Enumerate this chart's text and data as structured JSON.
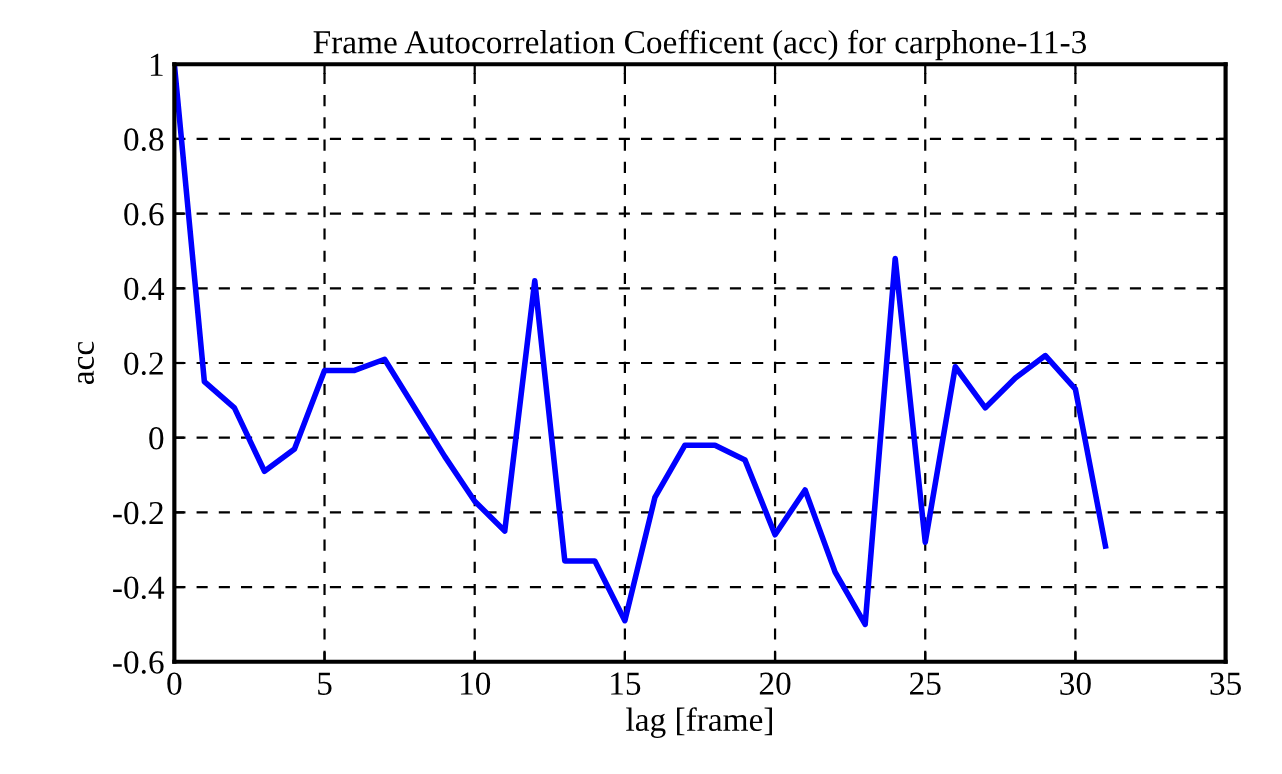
{
  "chart_data": {
    "type": "line",
    "title": "Frame Autocorrelation Coefficent (acc) for carphone-11-3",
    "xlabel": "lag [frame]",
    "ylabel": "acc",
    "x": [
      0,
      1,
      2,
      3,
      4,
      5,
      6,
      7,
      8,
      9,
      10,
      11,
      12,
      13,
      14,
      15,
      16,
      17,
      18,
      19,
      20,
      21,
      22,
      23,
      24,
      25,
      26,
      27,
      28,
      29,
      30,
      31
    ],
    "series": [
      {
        "color": "#0000ff",
        "values": [
          1.0,
          0.15,
          0.08,
          -0.09,
          -0.03,
          0.18,
          0.18,
          0.21,
          0.08,
          -0.05,
          -0.17,
          -0.25,
          0.42,
          -0.33,
          -0.33,
          -0.49,
          -0.16,
          -0.02,
          -0.02,
          -0.06,
          -0.26,
          -0.14,
          -0.36,
          -0.5,
          0.48,
          -0.28,
          0.19,
          0.08,
          0.16,
          0.22,
          0.13,
          -0.29
        ]
      }
    ],
    "xlim": [
      0,
      35
    ],
    "xticks": [
      0,
      5,
      10,
      15,
      20,
      25,
      30,
      35
    ],
    "ylim": [
      -0.6,
      1
    ],
    "yticks": [
      -0.6,
      -0.4,
      -0.2,
      0,
      0.2,
      0.4,
      0.6,
      0.8,
      1
    ],
    "grid": true,
    "legend": false,
    "marker": "none",
    "line_style": "solid"
  }
}
